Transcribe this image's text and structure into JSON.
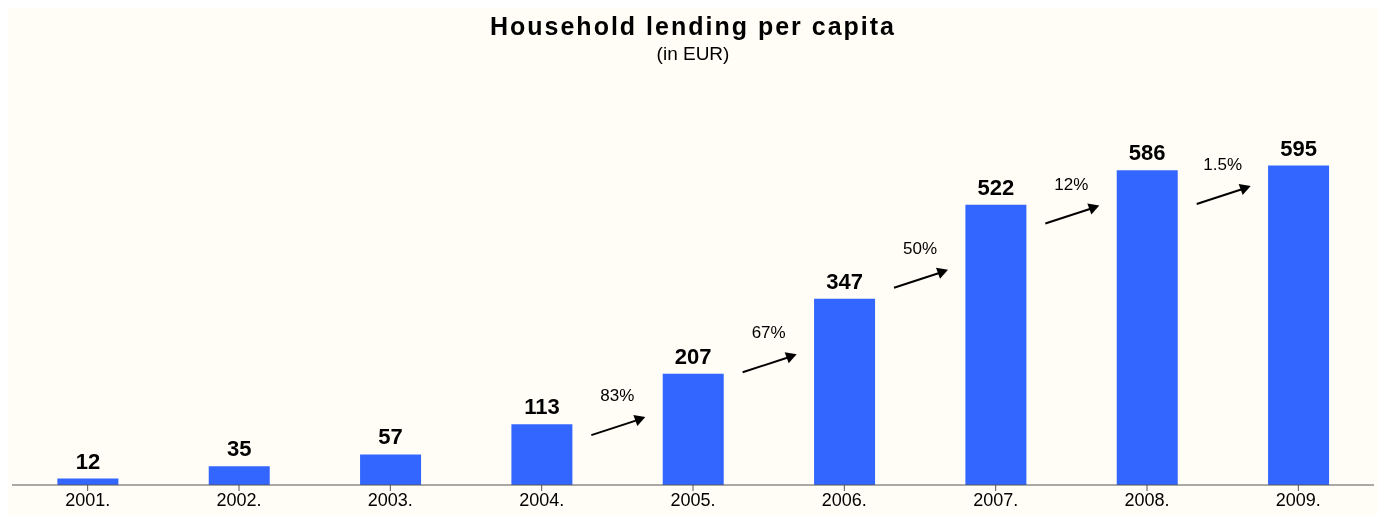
{
  "chart_data": {
    "type": "bar",
    "title": "Household lending per capita",
    "subtitle": "(in EUR)",
    "categories": [
      "2001.",
      "2002.",
      "2003.",
      "2004.",
      "2005.",
      "2006.",
      "2007.",
      "2008.",
      "2009."
    ],
    "values": [
      12,
      35,
      57,
      113,
      207,
      347,
      522,
      586,
      595
    ],
    "color": "#3366ff",
    "data_labels": true,
    "grid": false,
    "legend": false,
    "annotations": [
      "83%",
      "67%",
      "50%",
      "12%",
      "1.5%"
    ]
  }
}
